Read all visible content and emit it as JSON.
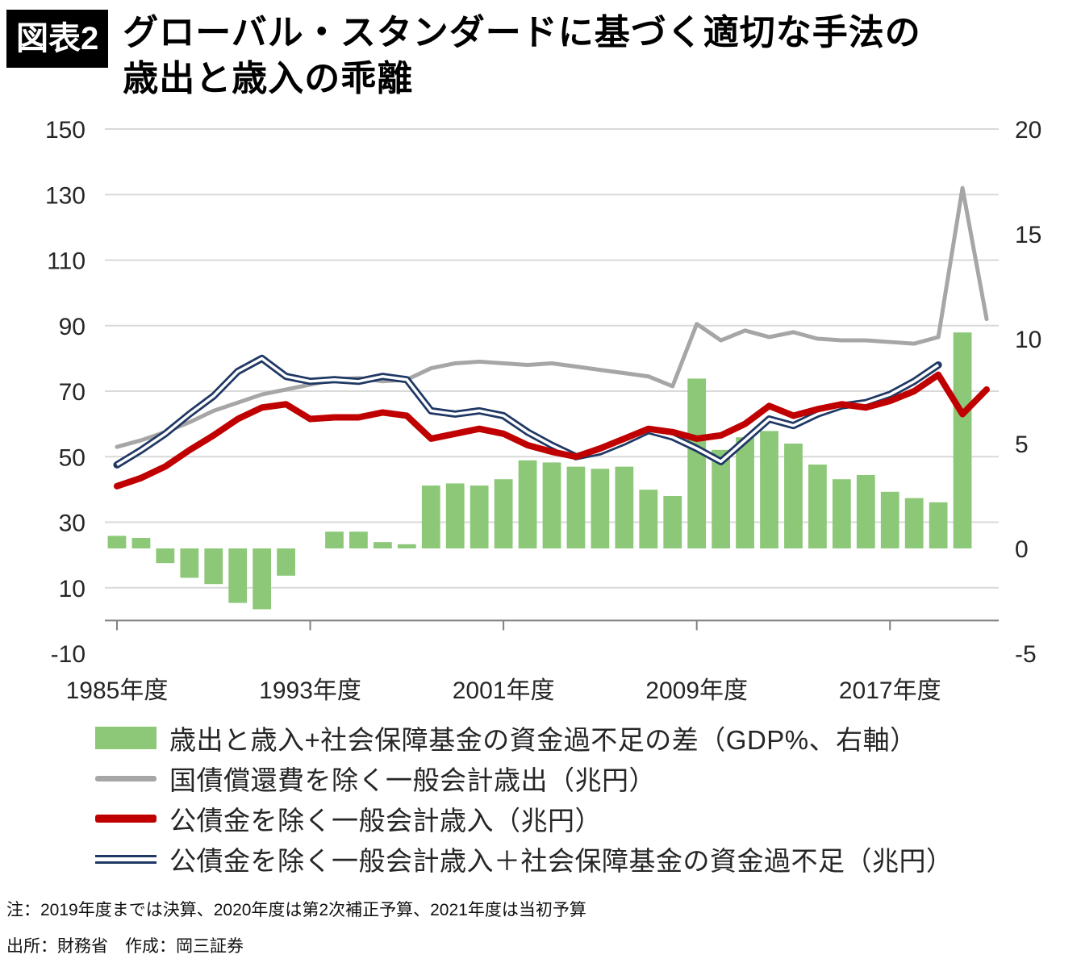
{
  "header": {
    "figure_label": "図表2",
    "title_line1": "グローバル・スタンダードに基づく適切な手法の",
    "title_line2": "歳出と歳入の乖離"
  },
  "chart_data": {
    "type": "combo-bar-line",
    "title": "グローバル・スタンダードに基づく適切な手法の歳出と歳入の乖離",
    "grid": true,
    "years": [
      1985,
      1986,
      1987,
      1988,
      1989,
      1990,
      1991,
      1992,
      1993,
      1994,
      1995,
      1996,
      1997,
      1998,
      1999,
      2000,
      2001,
      2002,
      2003,
      2004,
      2005,
      2006,
      2007,
      2008,
      2009,
      2010,
      2011,
      2012,
      2013,
      2014,
      2015,
      2016,
      2017,
      2018,
      2019,
      2020,
      2021
    ],
    "left_axis": {
      "unit": "兆円",
      "min": -10,
      "max": 150,
      "ticks": [
        150,
        130,
        110,
        90,
        70,
        50,
        30,
        10,
        -10
      ]
    },
    "right_axis": {
      "unit": "GDP%",
      "min": -5,
      "max": 20,
      "ticks": [
        20,
        15,
        10,
        5,
        0,
        -5
      ]
    },
    "x_ticks": [
      {
        "year": 1985,
        "label": "1985年度"
      },
      {
        "year": 1993,
        "label": "1993年度"
      },
      {
        "year": 2001,
        "label": "2001年度"
      },
      {
        "year": 2009,
        "label": "2009年度"
      },
      {
        "year": 2017,
        "label": "2017年度"
      }
    ],
    "series": [
      {
        "id": "green-bars",
        "name": "歳出と歳入+社会保障基金の資金過不足の差（GDP%、右軸）",
        "type": "bar",
        "axis": "right",
        "color": "#8cc878",
        "values": [
          0.6,
          0.5,
          -0.7,
          -1.4,
          -1.7,
          -2.6,
          -2.9,
          -1.3,
          0,
          0.8,
          0.8,
          0.3,
          0.2,
          3.0,
          3.1,
          3.0,
          3.3,
          4.2,
          4.1,
          3.9,
          3.8,
          3.9,
          2.8,
          2.5,
          8.1,
          4.7,
          5.3,
          5.6,
          5.0,
          4.0,
          3.3,
          3.5,
          2.7,
          2.4,
          2.2,
          10.3,
          null
        ]
      },
      {
        "id": "gray-expenditure",
        "name": "国債償還費を除く一般会計歳出（兆円）",
        "type": "line",
        "axis": "left",
        "color": "#a6a6a6",
        "values": [
          53,
          55,
          57.5,
          60.5,
          64,
          66.5,
          69,
          70.5,
          72,
          73.5,
          74,
          73,
          73.5,
          77,
          78.5,
          79,
          78.5,
          78,
          78.5,
          77.5,
          76.5,
          75.5,
          74.5,
          71.5,
          90.5,
          85.5,
          88.5,
          86.5,
          88,
          86,
          85.5,
          85.5,
          85,
          84.5,
          86.5,
          132,
          92
        ]
      },
      {
        "id": "navy-revenue-plus-ss",
        "name": "公債金を除く一般会計歳入＋社会保障基金の資金過不足（兆円）",
        "type": "line-double",
        "axis": "left",
        "color": "#1f3864",
        "values": [
          47.5,
          52,
          57,
          63,
          68.5,
          76,
          80,
          74.5,
          73,
          73.5,
          73,
          74.5,
          73.5,
          64,
          63,
          64,
          62.5,
          57.5,
          53.5,
          50,
          51.5,
          54.5,
          58,
          56,
          52.5,
          48.5,
          55,
          61.5,
          59.5,
          63,
          65.5,
          66.5,
          69,
          73,
          78,
          null,
          null
        ]
      },
      {
        "id": "red-revenue",
        "name": "公債金を除く一般会計歳入（兆円）",
        "type": "line",
        "axis": "left",
        "color": "#c00000",
        "values": [
          41,
          43.5,
          47,
          52,
          56.5,
          61.5,
          65,
          66,
          61.5,
          62,
          62,
          63.5,
          62.5,
          55.5,
          57,
          58.5,
          57,
          53.5,
          51.5,
          50,
          52.5,
          55.5,
          58.5,
          57.5,
          55.5,
          56.5,
          60,
          65.5,
          62.5,
          64.5,
          66,
          65,
          67,
          70,
          75,
          63,
          70.5
        ]
      }
    ]
  },
  "legend": {
    "items": [
      {
        "id": "green-bars",
        "label": "歳出と歳入+社会保障基金の資金過不足の差（GDP%、右軸）",
        "color": "#8cc878"
      },
      {
        "id": "gray-expenditure",
        "label": "国債償還費を除く一般会計歳出（兆円）",
        "color": "#a6a6a6"
      },
      {
        "id": "red-revenue",
        "label": "公債金を除く一般会計歳入（兆円）",
        "color": "#c00000"
      },
      {
        "id": "navy-revenue-plus-ss",
        "label": "公債金を除く一般会計歳入＋社会保障基金の資金過不足（兆円）",
        "color": "#1f3864"
      }
    ]
  },
  "notes": {
    "note": "注：2019年度までは決算、2020年度は第2次補正予算、2021年度は当初予算",
    "source": "出所：財務省　作成：岡三証券"
  },
  "colors": {
    "grid": "#d9d9d9",
    "axis": "#808080",
    "axis_text": "#262626"
  }
}
